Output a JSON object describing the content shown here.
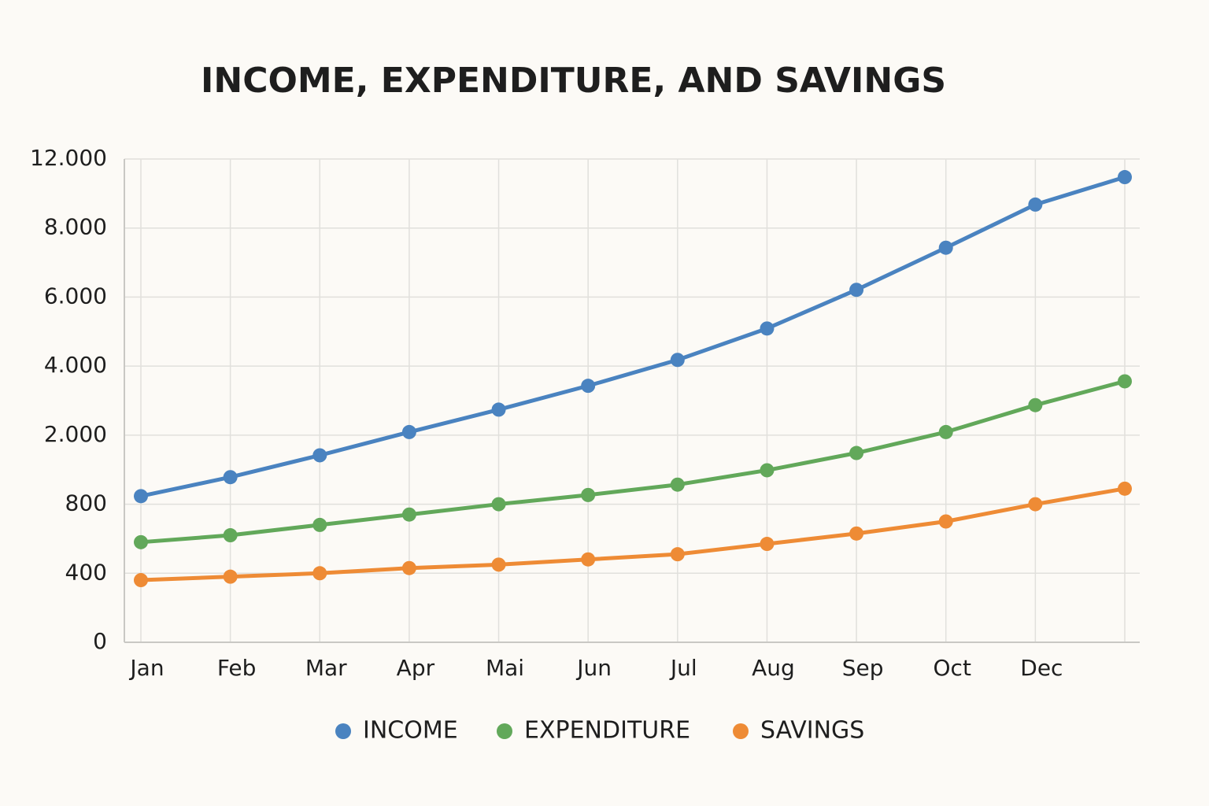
{
  "chart_data": {
    "type": "line",
    "title": "INCOME, EXPENDITURE, AND SAVINGS",
    "categories": [
      "Jan",
      "Feb",
      "Mar",
      "Apr",
      "Mai",
      "Jun",
      "Jul",
      "Aug",
      "Sep",
      "Oct",
      "Dec",
      null
    ],
    "series": [
      {
        "name": "INCOME",
        "color": "#4a83c0",
        "values": [
          940,
          1270,
          1650,
          2090,
          2740,
          3430,
          4180,
          5090,
          6210,
          7430,
          9360,
          10950
        ]
      },
      {
        "name": "EXPENDITURE",
        "color": "#62a85a",
        "values": [
          580,
          620,
          680,
          740,
          800,
          960,
          1140,
          1390,
          1690,
          2090,
          2870,
          3560
        ]
      },
      {
        "name": "SAVINGS",
        "color": "#ee8b35",
        "values": [
          360,
          380,
          400,
          430,
          450,
          480,
          510,
          570,
          630,
          700,
          800,
          1070
        ]
      }
    ],
    "ylim": [
      0,
      12000
    ],
    "yticks": [
      0,
      400,
      800,
      {
        "value": 2000,
        "label": "2.000"
      },
      {
        "value": 4000,
        "label": "4.000"
      },
      {
        "value": 6000,
        "label": "6.000"
      },
      {
        "value": 8000,
        "label": "8.000"
      },
      {
        "value": 12000,
        "label": "12.000"
      }
    ],
    "grid": true,
    "legend": "bottom"
  }
}
